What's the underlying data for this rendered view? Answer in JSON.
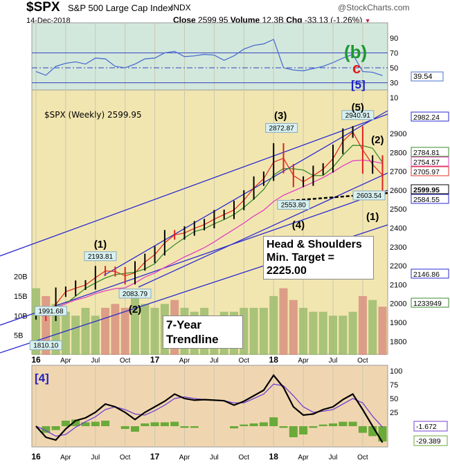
{
  "header": {
    "symbol": "$SPX",
    "name": "S&P 500 Large Cap Index",
    "exchange": "INDX",
    "date": "14-Dec-2018",
    "close_label": "Close",
    "close": "2599.95",
    "volume_label": "Volume",
    "volume": "12.3B",
    "chg_label": "Chg",
    "chg": "-33.13 (-1.26%)",
    "chg_icon": "down-triangle",
    "watermark": "@StockCharts.com"
  },
  "colors": {
    "up": "#000000",
    "down": "#e02020",
    "rsi": "#4a6fd0",
    "ma_red": "#e03020",
    "ma_green": "#3a8a2a",
    "ma_pink": "#e040c0",
    "trend": "#2a2ad0",
    "macd": "#000000",
    "signal": "#7040d0",
    "hist": "#6aaa3a"
  },
  "chart_data": [
    {
      "type": "line",
      "panel": "RSI",
      "ylim": [
        10,
        100
      ],
      "yticks": [
        "90",
        "70",
        "50",
        "30",
        "10"
      ],
      "last_label": "39.54",
      "x": [
        "Jan16",
        "Feb16",
        "Mar16",
        "Apr16",
        "May16",
        "Jun16",
        "Jul16",
        "Aug16",
        "Sep16",
        "Oct16",
        "Nov16",
        "Dec16",
        "Jan17",
        "Feb17",
        "Mar17",
        "Apr17",
        "May17",
        "Jun17",
        "Jul17",
        "Aug17",
        "Sep17",
        "Oct17",
        "Nov17",
        "Dec17",
        "Jan18",
        "Feb18",
        "Mar18",
        "Apr18",
        "May18",
        "Jun18",
        "Jul18",
        "Aug18",
        "Sep18",
        "Oct18",
        "Nov18",
        "Dec18"
      ],
      "values": [
        45,
        40,
        52,
        56,
        58,
        55,
        63,
        62,
        52,
        50,
        55,
        62,
        63,
        70,
        72,
        65,
        66,
        68,
        67,
        60,
        66,
        75,
        80,
        82,
        88,
        50,
        47,
        46,
        49,
        52,
        57,
        63,
        68,
        45,
        44,
        39.54
      ],
      "annotations": [
        "(b)",
        "c",
        "[5]"
      ]
    },
    {
      "type": "line",
      "panel": "price",
      "title": "$SPX (Weekly) 2599.95",
      "ylim": [
        1750,
        3050
      ],
      "yticks": [
        "2900",
        "2800",
        "2700",
        "2600",
        "2500",
        "2400",
        "2300",
        "2200",
        "2100",
        "2000",
        "1900",
        "1800"
      ],
      "values": [
        1940,
        1932,
        2060,
        2065,
        2097,
        2099,
        2174,
        2171,
        2168,
        2126,
        2199,
        2239,
        2279,
        2364,
        2363,
        2384,
        2412,
        2423,
        2470,
        2472,
        2519,
        2575,
        2648,
        2674,
        2824,
        2714,
        2641,
        2648,
        2705,
        2718,
        2816,
        2902,
        2914,
        2712,
        2760,
        2599.95
      ],
      "volume_b": [
        17,
        15,
        13,
        11,
        10,
        12,
        10,
        12,
        13,
        12,
        15,
        13,
        12,
        13,
        14,
        12,
        11,
        12,
        10,
        11,
        11,
        12,
        12,
        12,
        15,
        17,
        14,
        12,
        11,
        11,
        10,
        10,
        11,
        15,
        14,
        12.3
      ],
      "volume_ticks": [
        "20B",
        "15B",
        "10B",
        "5B"
      ],
      "price_labels": [
        {
          "m": 1,
          "v": "1810.10"
        },
        {
          "m": 1.5,
          "v": "1991.68"
        },
        {
          "m": 6.5,
          "v": "2193.81"
        },
        {
          "m": 10,
          "v": "2083.79"
        },
        {
          "m": 24.8,
          "v": "2872.87"
        },
        {
          "m": 26,
          "v": "2553.80"
        },
        {
          "m": 32.5,
          "v": "2940.91"
        },
        {
          "m": 34.2,
          "v": "2603.54"
        }
      ],
      "wave_labels": [
        {
          "m": 6.5,
          "t": "(1)"
        },
        {
          "m": 10,
          "t": "(2)"
        },
        {
          "m": 24.7,
          "t": "(3)"
        },
        {
          "m": 26.5,
          "t": "(4)"
        },
        {
          "m": 32.5,
          "t": "(5)"
        },
        {
          "m": 34.5,
          "t": "(2)"
        },
        {
          "m": 33.3,
          "t": "(1)"
        }
      ],
      "right_labels": [
        {
          "v": "2982.24",
          "c": "#2a2ad0"
        },
        {
          "v": "2784.81",
          "c": "#3a8a2a"
        },
        {
          "v": "2754.57",
          "c": "#e040c0"
        },
        {
          "v": "2705.97",
          "c": "#e03020"
        },
        {
          "v": "2599.95",
          "c": "#000000"
        },
        {
          "v": "2584.55",
          "c": "#2a2ad0"
        },
        {
          "v": "2146.86",
          "c": "#2a2ad0"
        },
        {
          "v": "1233949",
          "c": "#3a8a2a"
        }
      ],
      "notes": {
        "hs": "Head & Shoulders\nMin. Target =\n2225.00",
        "trend": "7-Year\nTrendline"
      }
    },
    {
      "type": "line",
      "panel": "oscillator",
      "ylim": [
        -50,
        100
      ],
      "yticks": [
        "100",
        "75",
        "50",
        "25"
      ],
      "label": "[4]",
      "series": [
        {
          "values": [
            0,
            -20,
            -25,
            -5,
            10,
            15,
            25,
            40,
            35,
            25,
            12,
            25,
            35,
            45,
            58,
            50,
            47,
            48,
            47,
            46,
            38,
            45,
            55,
            65,
            92,
            70,
            35,
            20,
            22,
            30,
            35,
            48,
            58,
            30,
            0,
            -29.389
          ],
          "last_label": "-29.389"
        },
        {
          "values": [
            0,
            -8,
            -18,
            -15,
            -2,
            8,
            17,
            30,
            35,
            30,
            22,
            20,
            28,
            38,
            50,
            53,
            50,
            48,
            47,
            46,
            42,
            42,
            50,
            58,
            76,
            73,
            55,
            35,
            25,
            27,
            30,
            40,
            50,
            42,
            18,
            -1.672
          ],
          "last_label": "-1.672"
        }
      ]
    },
    {
      "type": "axis",
      "xticks": [
        "16",
        "Apr",
        "Jul",
        "Oct",
        "17",
        "Apr",
        "Jul",
        "Oct",
        "18",
        "Apr",
        "Jul",
        "Oct"
      ]
    }
  ]
}
